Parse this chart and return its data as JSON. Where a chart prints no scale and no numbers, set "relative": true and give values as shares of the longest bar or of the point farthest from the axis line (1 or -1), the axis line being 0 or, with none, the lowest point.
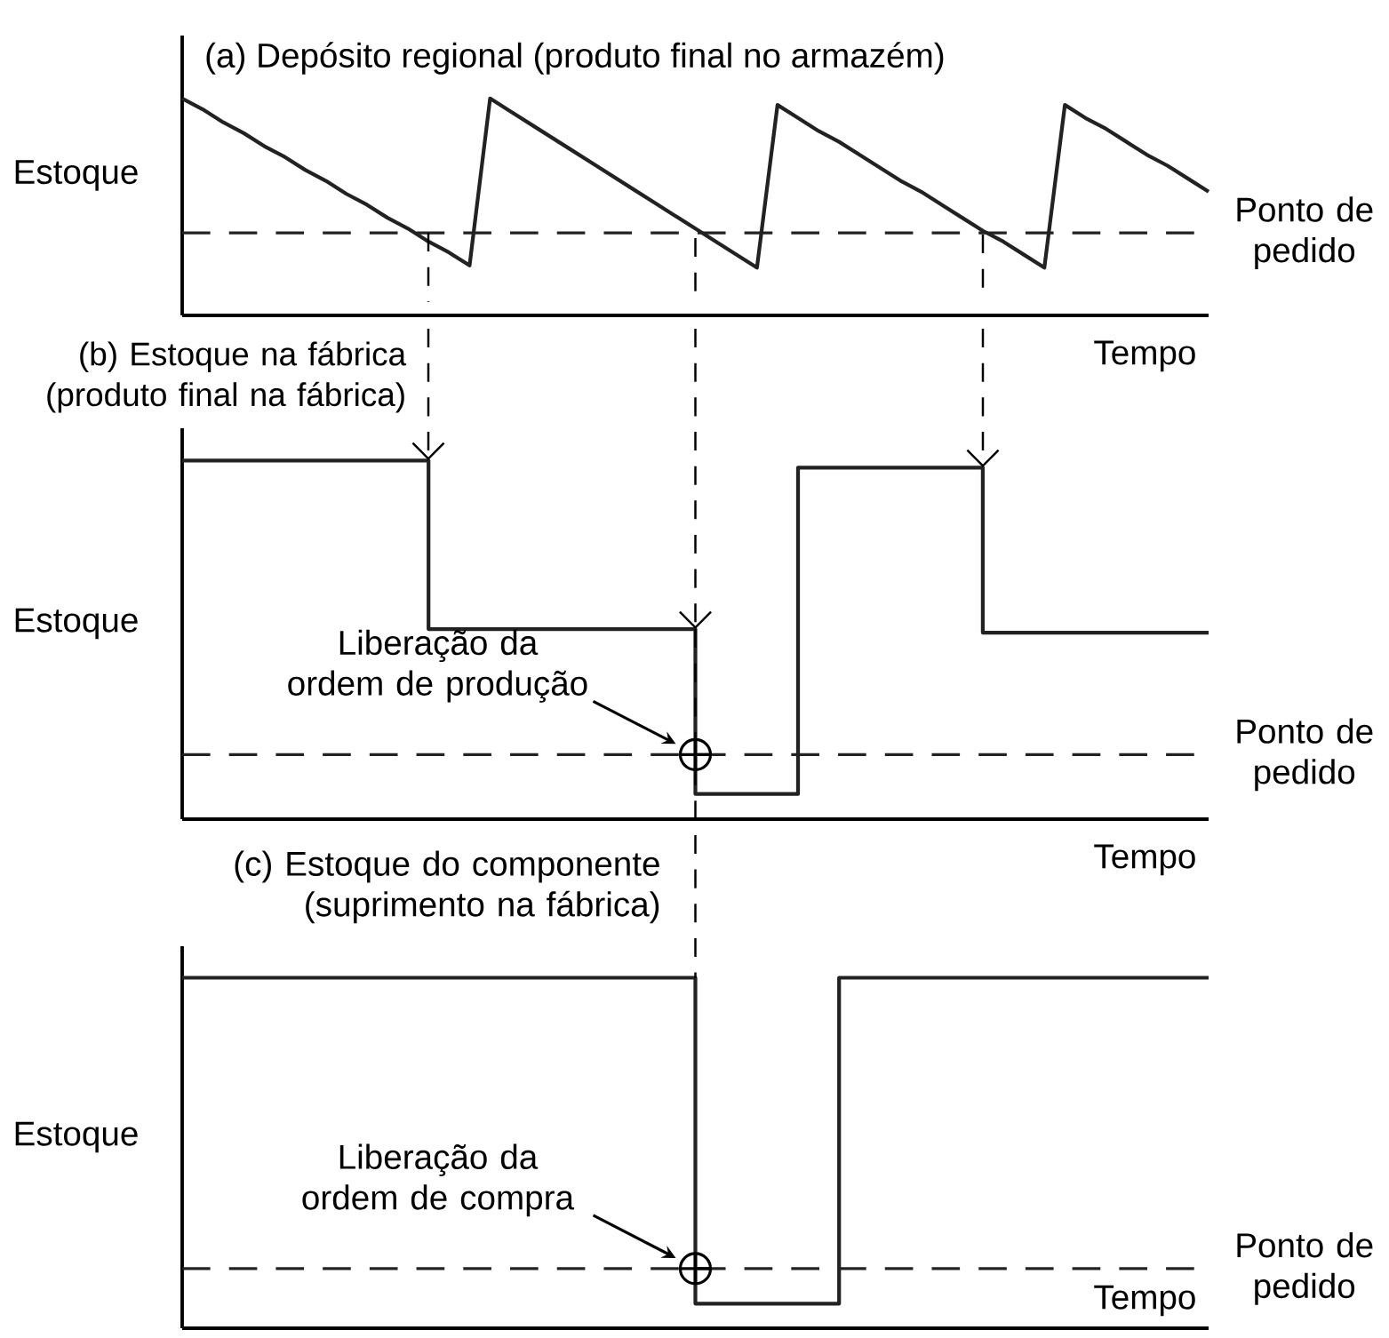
{
  "chart_data": [
    {
      "type": "line",
      "title": "(a) Depósito regional (produto final no armazém)",
      "xlabel": "Tempo",
      "ylabel": "Estoque",
      "relative": true,
      "categories": [
        null,
        null,
        null,
        null,
        null,
        null,
        null,
        null,
        null,
        null,
        null,
        null,
        null,
        null,
        null,
        null,
        null,
        null,
        null,
        null,
        null,
        null,
        null,
        null,
        null,
        null,
        null,
        null,
        null,
        null,
        null,
        null,
        null,
        null,
        null,
        null,
        null,
        null,
        null,
        null,
        null,
        null,
        null,
        null,
        null,
        null,
        null,
        null,
        null,
        null,
        null
      ],
      "series": [
        {
          "color": "#222222",
          "values": [
            1,
            0.95,
            0.89,
            0.84,
            0.78,
            0.73,
            0.67,
            0.62,
            0.56,
            0.51,
            0.45,
            0.4,
            0.34,
            0.29,
            0.23,
            1,
            0.94,
            0.88,
            0.82,
            0.76,
            0.7,
            0.64,
            0.58,
            0.52,
            0.46,
            0.4,
            0.34,
            0.28,
            0.22,
            0.97,
            0.91,
            0.85,
            0.8,
            0.74,
            0.68,
            0.62,
            0.57,
            0.51,
            0.45,
            0.39,
            0.34,
            0.28,
            0.22,
            0.97,
            0.91,
            0.86,
            0.8,
            0.74,
            0.69,
            0.63,
            0.57
          ]
        }
      ],
      "ref_lines": [
        {
          "axis": "y",
          "value": 0.38,
          "label": "Ponto de pedido",
          "line_style": "dashed",
          "color": "#222222"
        }
      ]
    },
    {
      "type": "step",
      "title": "(b) Estoque na fábrica (produto final na fábrica)",
      "xlabel": "Tempo",
      "ylabel": "Estoque",
      "relative": true,
      "categories": [
        null,
        null,
        null,
        null,
        null,
        null,
        null,
        null,
        null,
        null,
        null,
        null,
        null,
        null,
        null,
        null,
        null,
        null,
        null,
        null,
        null,
        null,
        null,
        null,
        null,
        null,
        null,
        null,
        null,
        null,
        null,
        null,
        null,
        null,
        null,
        null,
        null,
        null,
        null,
        null,
        null,
        null,
        null,
        null,
        null,
        null,
        null,
        null,
        null,
        null,
        null
      ],
      "series": [
        {
          "color": "#222222",
          "values": [
            1,
            1,
            1,
            1,
            1,
            1,
            1,
            1,
            1,
            1,
            1,
            1,
            0.53,
            0.53,
            0.53,
            0.53,
            0.53,
            0.53,
            0.53,
            0.53,
            0.53,
            0.53,
            0.53,
            0.53,
            0.53,
            0.07,
            0.07,
            0.07,
            0.07,
            0.07,
            0.98,
            0.98,
            0.98,
            0.98,
            0.98,
            0.98,
            0.98,
            0.98,
            0.98,
            0.52,
            0.52,
            0.52,
            0.52,
            0.52,
            0.52,
            0.52,
            0.52,
            0.52,
            0.52,
            0.52,
            0.52
          ]
        }
      ],
      "ref_lines": [
        {
          "axis": "y",
          "value": 0.18,
          "label": "Ponto de pedido",
          "line_style": "dashed",
          "color": "#222222"
        }
      ],
      "annotations": [
        "Liberação da ordem de produção"
      ]
    },
    {
      "type": "step",
      "title": "(c) Estoque do componente (suprimento na fábrica)",
      "xlabel": "Tempo",
      "ylabel": "Estoque",
      "relative": true,
      "categories": [
        null,
        null,
        null,
        null,
        null,
        null,
        null,
        null,
        null,
        null,
        null,
        null,
        null,
        null,
        null,
        null,
        null,
        null,
        null,
        null,
        null,
        null,
        null,
        null,
        null,
        null,
        null,
        null,
        null,
        null,
        null,
        null,
        null,
        null,
        null,
        null,
        null,
        null,
        null,
        null,
        null,
        null,
        null,
        null,
        null,
        null,
        null,
        null,
        null,
        null,
        null
      ],
      "series": [
        {
          "color": "#222222",
          "values": [
            1,
            1,
            1,
            1,
            1,
            1,
            1,
            1,
            1,
            1,
            1,
            1,
            1,
            1,
            1,
            1,
            1,
            1,
            1,
            1,
            1,
            1,
            1,
            1,
            1,
            0.07,
            0.07,
            0.07,
            0.07,
            0.07,
            0.07,
            0.07,
            1,
            1,
            1,
            1,
            1,
            1,
            1,
            1,
            1,
            1,
            1,
            1,
            1,
            1,
            1,
            1,
            1,
            1,
            1
          ]
        }
      ],
      "ref_lines": [
        {
          "axis": "y",
          "value": 0.17,
          "label": "Ponto de pedido",
          "line_style": "dashed",
          "color": "#222222"
        }
      ],
      "annotations": [
        "Liberação da ordem de compra"
      ]
    }
  ]
}
